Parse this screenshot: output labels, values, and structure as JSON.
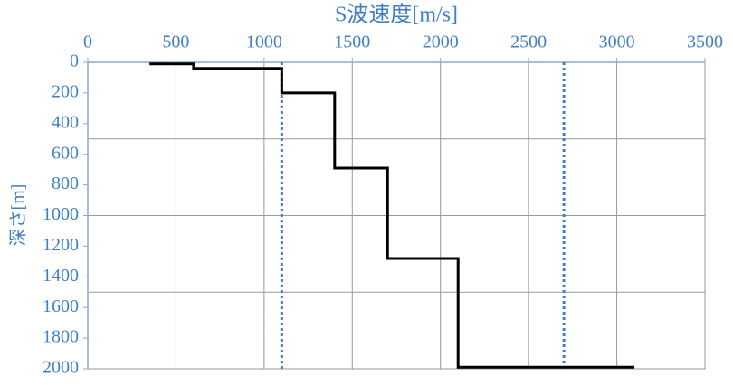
{
  "chart_data": {
    "type": "line",
    "title": "S波速度[m/s]",
    "y_label": "深さ[m]",
    "x": [
      350,
      600,
      600,
      1100,
      1100,
      1400,
      1400,
      1700,
      1700,
      2100,
      2100,
      3100
    ],
    "series": [
      {
        "values": [
          10,
          10,
          40,
          40,
          200,
          200,
          690,
          690,
          1280,
          1280,
          1990,
          1990
        ],
        "color": "#000000"
      }
    ],
    "reference_lines": {
      "x": [
        1100,
        2700
      ],
      "color": "#3f7fc4",
      "style": "dotted"
    },
    "xlim": [
      0,
      3500
    ],
    "xticks": [
      0,
      500,
      1000,
      1500,
      2000,
      2500,
      3000,
      3500
    ],
    "ylim": [
      0,
      2000
    ],
    "yticks": [
      0,
      200,
      400,
      600,
      800,
      1000,
      1200,
      1400,
      1600,
      1800,
      2000
    ],
    "y_inverted": true,
    "x_axis_position": "top",
    "xgrid": [
      500,
      1000,
      1500,
      2000,
      2500,
      3000,
      3500
    ],
    "ygrid": [
      500,
      1000,
      1500
    ]
  }
}
